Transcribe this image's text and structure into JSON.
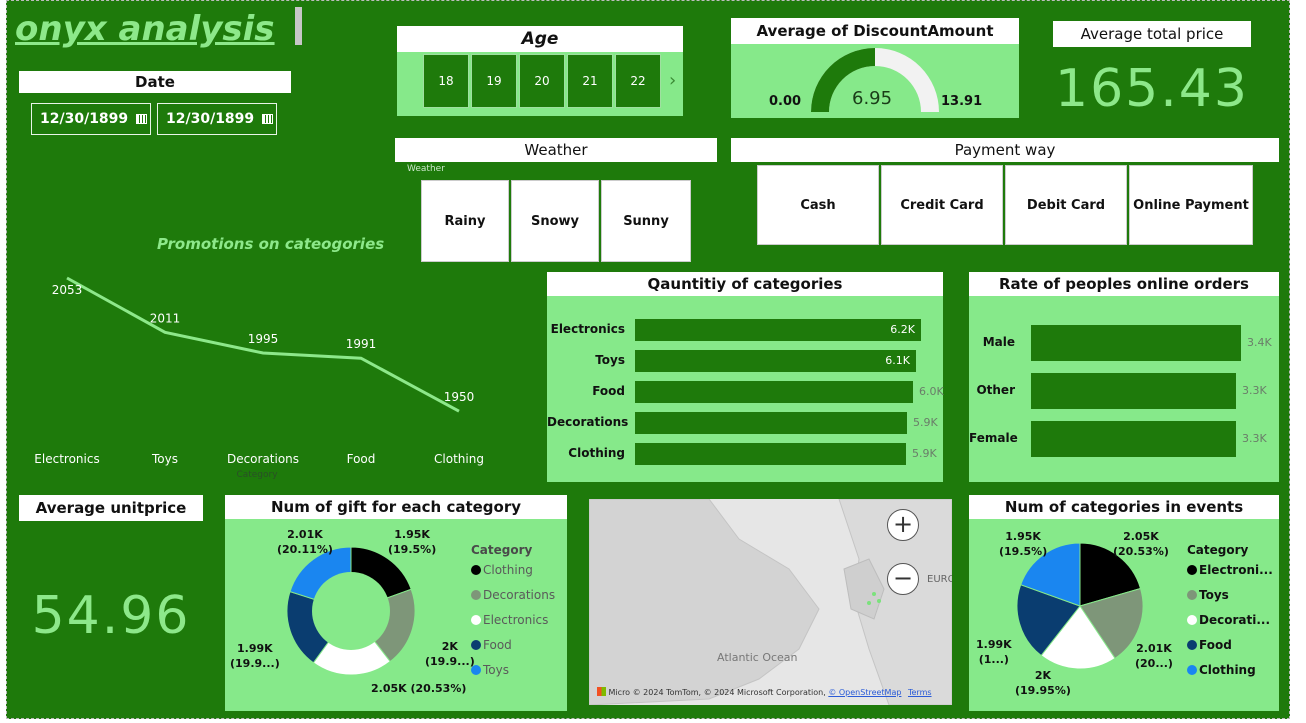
{
  "app": {
    "title": "onyx analysis"
  },
  "date": {
    "title": "Date",
    "start": "12/30/1899",
    "end": "12/30/1899"
  },
  "age": {
    "title": "Age",
    "values": [
      "18",
      "19",
      "20",
      "21",
      "22"
    ]
  },
  "discount": {
    "title": "Average of DiscountAmount",
    "min": "0.00",
    "value": "6.95",
    "max": "13.91",
    "fraction": 0.5
  },
  "total_price": {
    "title": "Average total price",
    "value": "165.43"
  },
  "weather": {
    "title": "Weather",
    "sublabel": "Weather",
    "options": [
      "Rainy",
      "Snowy",
      "Sunny"
    ]
  },
  "payment": {
    "title": "Payment way",
    "options": [
      "Cash",
      "Credit Card",
      "Debit Card",
      "Online Payment"
    ]
  },
  "promotions": {
    "title": "Promotions on cateogories",
    "xlabel": "Category",
    "chart_data": {
      "type": "line",
      "categories": [
        "Electronics",
        "Toys",
        "Decorations",
        "Food",
        "Clothing"
      ],
      "values": [
        2053,
        2011,
        1995,
        1991,
        1950
      ]
    }
  },
  "quantity": {
    "title": "Qauntitiy of categories",
    "chart_data": {
      "type": "bar",
      "categories": [
        "Electronics",
        "Toys",
        "Food",
        "Decorations",
        "Clothing"
      ],
      "values": [
        6200,
        6100,
        6000,
        5900,
        5900
      ],
      "labels": [
        "6.2K",
        "6.1K",
        "6.0K",
        "5.9K",
        "5.9K"
      ]
    }
  },
  "online_rate": {
    "title": "Rate of peoples online orders",
    "chart_data": {
      "type": "bar",
      "categories": [
        "Male",
        "Other",
        "Female"
      ],
      "values": [
        3400,
        3300,
        3300
      ],
      "labels": [
        "3.4K",
        "3.3K",
        "3.3K"
      ]
    }
  },
  "avg_unitprice": {
    "title": "Average unitprice",
    "value": "54.96"
  },
  "gifts": {
    "title": "Num of gift for each category",
    "legend_title": "Category",
    "legend": [
      "Clothing",
      "Decorations",
      "Electronics",
      "Food",
      "Toys"
    ],
    "labels": [
      {
        "value": "1.95K",
        "pct": "(19.5%)"
      },
      {
        "value": "2K",
        "pct": "(19.9...)"
      },
      {
        "value": "2.05K (20.53%)",
        "pct": ""
      },
      {
        "value": "1.99K",
        "pct": "(19.9...)"
      },
      {
        "value": "2.01K",
        "pct": "(20.11%)"
      }
    ],
    "chart_data": {
      "type": "pie",
      "categories": [
        "Clothing",
        "Decorations",
        "Electronics",
        "Food",
        "Toys"
      ],
      "values": [
        1950,
        2000,
        2050,
        1990,
        2010
      ],
      "colors": [
        "#000000",
        "#7e9679",
        "#ffffff",
        "#0a3d70",
        "#1a86f0"
      ]
    }
  },
  "map": {
    "ocean_label": "Atlantic Ocean",
    "region_label": "EURO",
    "attribution": "© 2024 TomTom, © 2024 Microsoft Corporation,",
    "osm": "© OpenStreetMap",
    "terms": "Terms",
    "brand": "Micro"
  },
  "events": {
    "title": "Num of categories in events",
    "legend_title": "Category",
    "legend": [
      "Electroni...",
      "Toys",
      "Decorati...",
      "Food",
      "Clothing"
    ],
    "labels": [
      {
        "value": "2.05K",
        "pct": "(20.53%)"
      },
      {
        "value": "2.01K",
        "pct": "(20...)"
      },
      {
        "value": "2K",
        "pct": "(19.95%)"
      },
      {
        "value": "1.99K",
        "pct": "(1...)"
      },
      {
        "value": "1.95K",
        "pct": "(19.5%)"
      }
    ],
    "chart_data": {
      "type": "pie",
      "categories": [
        "Electronics",
        "Toys",
        "Decorations",
        "Food",
        "Clothing"
      ],
      "values": [
        2050,
        2010,
        1995,
        1990,
        1950
      ],
      "colors": [
        "#000000",
        "#7e9679",
        "#ffffff",
        "#0a3d70",
        "#1a86f0"
      ]
    }
  }
}
